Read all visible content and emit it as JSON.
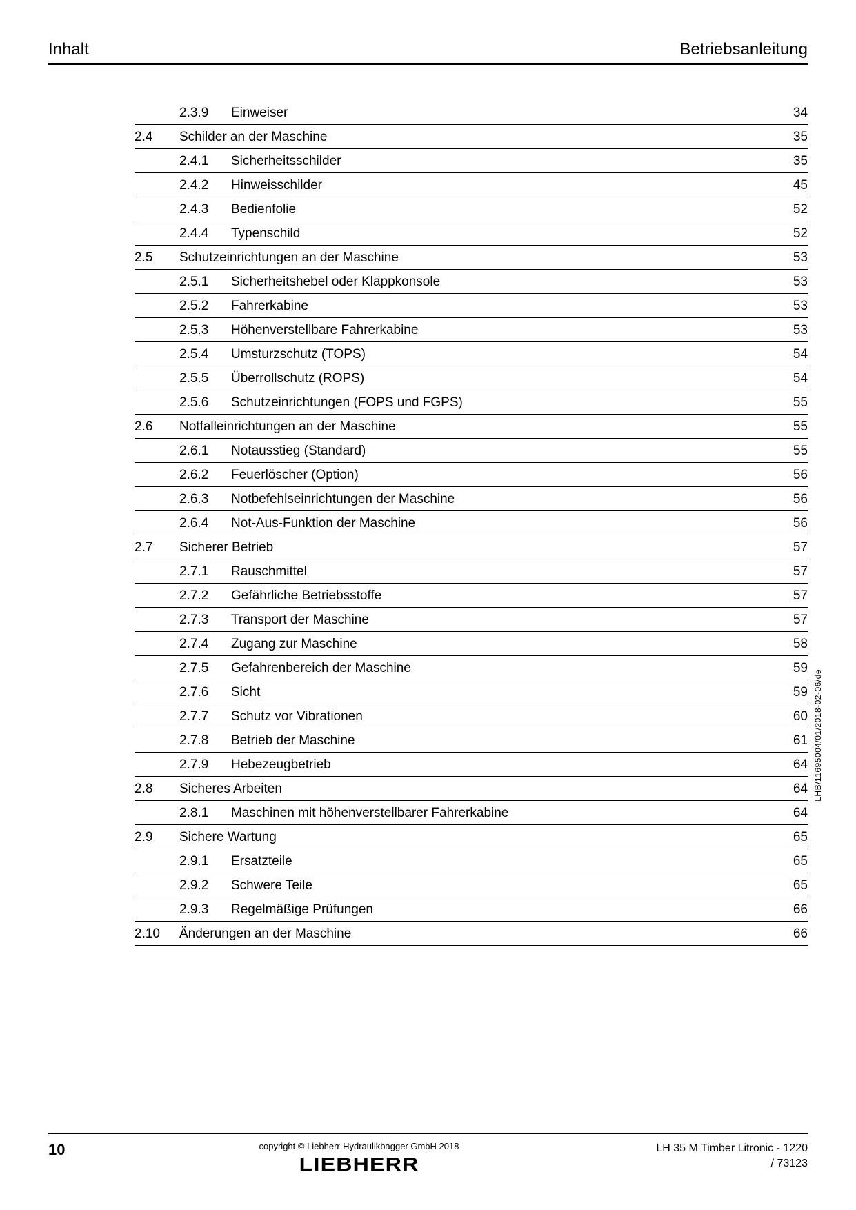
{
  "header": {
    "left": "Inhalt",
    "right": "Betriebsanleitung"
  },
  "toc": [
    {
      "level": 2,
      "section": "",
      "sub": "2.3.9",
      "title": "Einweiser",
      "page": "34"
    },
    {
      "level": 1,
      "section": "2.4",
      "sub": "",
      "title": "Schilder an der Maschine",
      "page": "35"
    },
    {
      "level": 2,
      "section": "",
      "sub": "2.4.1",
      "title": "Sicherheitsschilder",
      "page": "35"
    },
    {
      "level": 2,
      "section": "",
      "sub": "2.4.2",
      "title": "Hinweisschilder",
      "page": "45"
    },
    {
      "level": 2,
      "section": "",
      "sub": "2.4.3",
      "title": "Bedienfolie",
      "page": "52"
    },
    {
      "level": 2,
      "section": "",
      "sub": "2.4.4",
      "title": "Typenschild",
      "page": "52"
    },
    {
      "level": 1,
      "section": "2.5",
      "sub": "",
      "title": "Schutzeinrichtungen an der Maschine",
      "page": "53"
    },
    {
      "level": 2,
      "section": "",
      "sub": "2.5.1",
      "title": "Sicherheitshebel oder Klappkonsole",
      "page": "53"
    },
    {
      "level": 2,
      "section": "",
      "sub": "2.5.2",
      "title": "Fahrerkabine",
      "page": "53"
    },
    {
      "level": 2,
      "section": "",
      "sub": "2.5.3",
      "title": "Höhenverstellbare Fahrerkabine",
      "page": "53"
    },
    {
      "level": 2,
      "section": "",
      "sub": "2.5.4",
      "title": "Umsturzschutz (TOPS)",
      "page": "54"
    },
    {
      "level": 2,
      "section": "",
      "sub": "2.5.5",
      "title": "Überrollschutz (ROPS)",
      "page": "54"
    },
    {
      "level": 2,
      "section": "",
      "sub": "2.5.6",
      "title": "Schutzeinrichtungen (FOPS und FGPS)",
      "page": "55"
    },
    {
      "level": 1,
      "section": "2.6",
      "sub": "",
      "title": "Notfalleinrichtungen an der Maschine",
      "page": "55"
    },
    {
      "level": 2,
      "section": "",
      "sub": "2.6.1",
      "title": "Notausstieg (Standard)",
      "page": "55"
    },
    {
      "level": 2,
      "section": "",
      "sub": "2.6.2",
      "title": "Feuerlöscher (Option)",
      "page": "56"
    },
    {
      "level": 2,
      "section": "",
      "sub": "2.6.3",
      "title": "Notbefehlseinrichtungen der Maschine",
      "page": "56"
    },
    {
      "level": 2,
      "section": "",
      "sub": "2.6.4",
      "title": "Not-Aus-Funktion der Maschine",
      "page": "56"
    },
    {
      "level": 1,
      "section": "2.7",
      "sub": "",
      "title": "Sicherer Betrieb",
      "page": "57"
    },
    {
      "level": 2,
      "section": "",
      "sub": "2.7.1",
      "title": "Rauschmittel",
      "page": "57"
    },
    {
      "level": 2,
      "section": "",
      "sub": "2.7.2",
      "title": "Gefährliche Betriebsstoffe",
      "page": "57"
    },
    {
      "level": 2,
      "section": "",
      "sub": "2.7.3",
      "title": "Transport der Maschine",
      "page": "57"
    },
    {
      "level": 2,
      "section": "",
      "sub": "2.7.4",
      "title": "Zugang zur Maschine",
      "page": "58"
    },
    {
      "level": 2,
      "section": "",
      "sub": "2.7.5",
      "title": "Gefahrenbereich der Maschine",
      "page": "59"
    },
    {
      "level": 2,
      "section": "",
      "sub": "2.7.6",
      "title": "Sicht",
      "page": "59"
    },
    {
      "level": 2,
      "section": "",
      "sub": "2.7.7",
      "title": "Schutz vor Vibrationen",
      "page": "60"
    },
    {
      "level": 2,
      "section": "",
      "sub": "2.7.8",
      "title": "Betrieb der Maschine",
      "page": "61"
    },
    {
      "level": 2,
      "section": "",
      "sub": "2.7.9",
      "title": "Hebezeugbetrieb",
      "page": "64"
    },
    {
      "level": 1,
      "section": "2.8",
      "sub": "",
      "title": "Sicheres Arbeiten",
      "page": "64"
    },
    {
      "level": 2,
      "section": "",
      "sub": "2.8.1",
      "title": "Maschinen mit höhenverstellbarer Fahrerkabine",
      "page": "64"
    },
    {
      "level": 1,
      "section": "2.9",
      "sub": "",
      "title": "Sichere Wartung",
      "page": "65"
    },
    {
      "level": 2,
      "section": "",
      "sub": "2.9.1",
      "title": "Ersatzteile",
      "page": "65"
    },
    {
      "level": 2,
      "section": "",
      "sub": "2.9.2",
      "title": "Schwere Teile",
      "page": "65"
    },
    {
      "level": 2,
      "section": "",
      "sub": "2.9.3",
      "title": "Regelmäßige Prüfungen",
      "page": "66"
    },
    {
      "level": 1,
      "section": "2.10",
      "sub": "",
      "title": "Änderungen an der Maschine",
      "page": "66"
    }
  ],
  "vertical_code": "LHB/11695004/01/2018-02-06/de",
  "footer": {
    "page_number": "10",
    "copyright": "copyright © Liebherr-Hydraulikbagger GmbH 2018",
    "brand": "LIEBHERR",
    "model_line1": "LH 35 M Timber Litronic  - 1220",
    "model_line2": "/ 73123"
  }
}
